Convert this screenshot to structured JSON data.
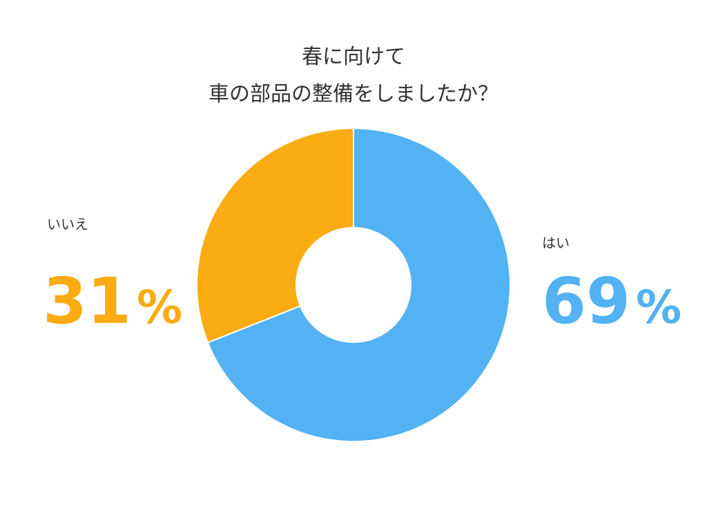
{
  "chart_data": {
    "type": "donut",
    "title": [
      "春に向けて",
      "車の部品の整備をしましたか？"
    ],
    "categories": [
      "はい",
      "いいえ"
    ],
    "values": [
      69,
      31
    ],
    "value_labels": [
      "69%",
      "31%"
    ],
    "colors": [
      "#52b2f3",
      "#fbac12"
    ]
  }
}
